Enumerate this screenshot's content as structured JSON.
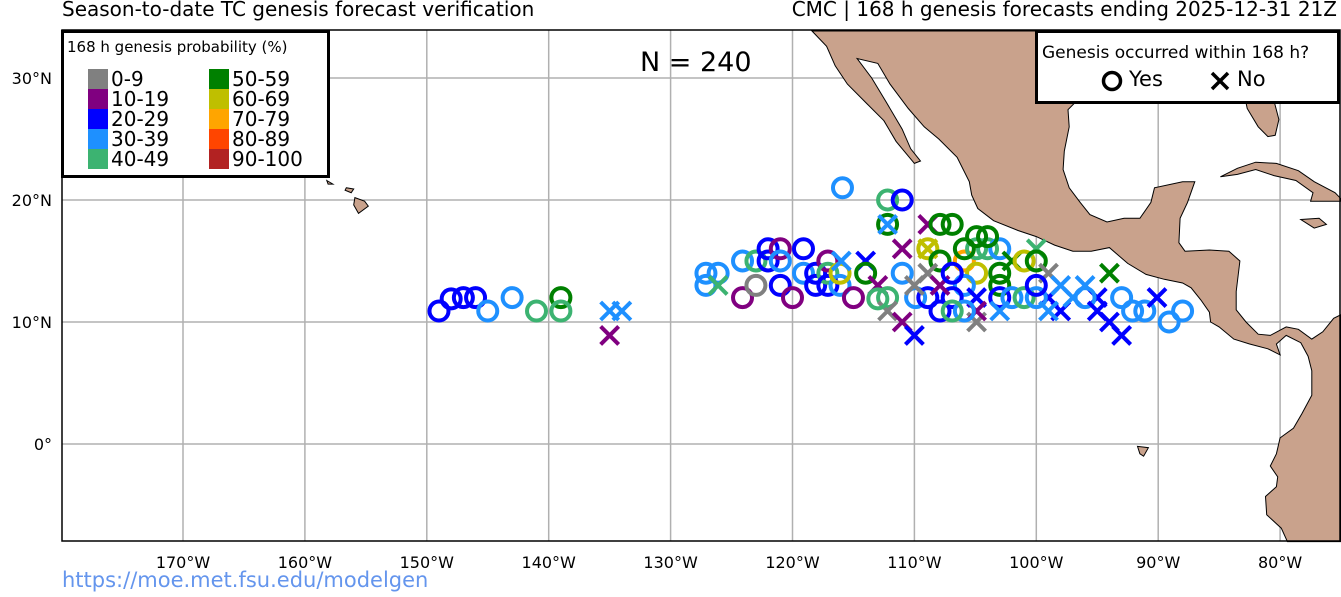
{
  "header": {
    "title_left": "Season-to-date TC genesis forecast verification",
    "title_right": "CMC | 168 h genesis forecasts ending 2025-12-31 21Z"
  },
  "count_label": "N = 240",
  "footer_url": "https://moe.met.fsu.edu/modelgen",
  "prob_legend": {
    "title": "168 h genesis probability (%)",
    "bins": [
      {
        "label": "0-9",
        "color": "#808080"
      },
      {
        "label": "10-19",
        "color": "#800080"
      },
      {
        "label": "20-29",
        "color": "#0000ff"
      },
      {
        "label": "30-39",
        "color": "#1e90ff"
      },
      {
        "label": "40-49",
        "color": "#3cb371"
      },
      {
        "label": "50-59",
        "color": "#008000"
      },
      {
        "label": "60-69",
        "color": "#bfbf00"
      },
      {
        "label": "70-79",
        "color": "#ffa500"
      },
      {
        "label": "80-89",
        "color": "#ff4500"
      },
      {
        "label": "90-100",
        "color": "#b22222"
      }
    ]
  },
  "outcome_legend": {
    "title": "Genesis occurred within 168 h?",
    "yes": "Yes",
    "no": "No"
  },
  "chart_data": {
    "type": "scatter",
    "lon_range": [
      -180,
      -75
    ],
    "lat_range": [
      -8,
      33.85
    ],
    "lon_ticks": [
      {
        "v": -170,
        "l": "170°W"
      },
      {
        "v": -160,
        "l": "160°W"
      },
      {
        "v": -150,
        "l": "150°W"
      },
      {
        "v": -140,
        "l": "140°W"
      },
      {
        "v": -130,
        "l": "130°W"
      },
      {
        "v": -120,
        "l": "120°W"
      },
      {
        "v": -110,
        "l": "110°W"
      },
      {
        "v": -100,
        "l": "100°W"
      },
      {
        "v": -90,
        "l": "90°W"
      },
      {
        "v": -80,
        "l": "80°W"
      }
    ],
    "lat_ticks": [
      {
        "v": 30,
        "l": "30°N"
      },
      {
        "v": 20,
        "l": "20°N"
      },
      {
        "v": 10,
        "l": "10°N"
      },
      {
        "v": 0,
        "l": "0°"
      }
    ],
    "land_color": "#c9a28c",
    "points_note": "[lon, lat, outcome(o=yes,x=no), probability bin index]",
    "points": [
      [
        -149,
        10.9,
        "o",
        2
      ],
      [
        -148,
        11.9,
        "o",
        2
      ],
      [
        -147,
        12,
        "o",
        2
      ],
      [
        -146,
        12,
        "o",
        2
      ],
      [
        -145,
        10.9,
        "o",
        3
      ],
      [
        -143,
        12,
        "o",
        3
      ],
      [
        -141,
        10.9,
        "o",
        4
      ],
      [
        -139,
        12,
        "o",
        5
      ],
      [
        -139,
        10.9,
        "o",
        4
      ],
      [
        -135,
        10.9,
        "x",
        3
      ],
      [
        -134,
        10.9,
        "x",
        3
      ],
      [
        -135,
        8.9,
        "x",
        1
      ],
      [
        -115.9,
        21,
        "o",
        3
      ],
      [
        -127.1,
        14,
        "o",
        3
      ],
      [
        -127.1,
        13,
        "o",
        3
      ],
      [
        -126.1,
        14,
        "o",
        3
      ],
      [
        -126.1,
        13,
        "x",
        4
      ],
      [
        -124.1,
        15,
        "o",
        3
      ],
      [
        -124.1,
        12,
        "o",
        1
      ],
      [
        -123,
        13,
        "o",
        0
      ],
      [
        -123,
        15,
        "o",
        4
      ],
      [
        -122,
        16,
        "o",
        2
      ],
      [
        -122,
        15,
        "o",
        2
      ],
      [
        -121,
        16,
        "o",
        1
      ],
      [
        -121,
        15,
        "o",
        3
      ],
      [
        -121,
        13,
        "o",
        2
      ],
      [
        -120,
        12,
        "o",
        1
      ],
      [
        -119.1,
        16,
        "o",
        2
      ],
      [
        -119.1,
        14,
        "o",
        3
      ],
      [
        -118.1,
        13,
        "o",
        2
      ],
      [
        -118.1,
        14,
        "o",
        2
      ],
      [
        -117.1,
        15,
        "o",
        1
      ],
      [
        -117.1,
        14,
        "o",
        4
      ],
      [
        -117.1,
        13,
        "o",
        2
      ],
      [
        -116.1,
        13,
        "o",
        3
      ],
      [
        -116.1,
        14,
        "o",
        6
      ],
      [
        -115,
        12,
        "o",
        1
      ],
      [
        -116,
        15,
        "x",
        3
      ],
      [
        -114,
        15,
        "x",
        2
      ],
      [
        -114,
        14,
        "o",
        5
      ],
      [
        -113,
        13,
        "x",
        1
      ],
      [
        -112.2,
        20,
        "o",
        4
      ],
      [
        -111,
        20,
        "o",
        2
      ],
      [
        -112.2,
        18,
        "o",
        5
      ],
      [
        -112.2,
        18,
        "x",
        3
      ],
      [
        -111,
        16,
        "x",
        1
      ],
      [
        -111,
        14,
        "o",
        3
      ],
      [
        -112.2,
        12,
        "o",
        4
      ],
      [
        -112.2,
        10.9,
        "x",
        0
      ],
      [
        -111,
        10,
        "x",
        1
      ],
      [
        -110,
        8.9,
        "x",
        2
      ],
      [
        -109.9,
        12,
        "o",
        3
      ],
      [
        -108.9,
        12,
        "o",
        2
      ],
      [
        -108.9,
        18,
        "x",
        1
      ],
      [
        -107.9,
        18,
        "o",
        5
      ],
      [
        -106.9,
        18,
        "o",
        5
      ],
      [
        -108.9,
        16,
        "o",
        6
      ],
      [
        -108.9,
        16,
        "x",
        6
      ],
      [
        -107.9,
        15,
        "o",
        5
      ],
      [
        -105.9,
        15,
        "o",
        7
      ],
      [
        -104.9,
        14,
        "o",
        6
      ],
      [
        -104.9,
        16,
        "o",
        4
      ],
      [
        -104,
        16,
        "o",
        4
      ],
      [
        -103,
        16,
        "o",
        3
      ],
      [
        -105.9,
        13,
        "o",
        3
      ],
      [
        -104.9,
        12,
        "x",
        2
      ],
      [
        -104.9,
        10,
        "x",
        0
      ],
      [
        -104.9,
        10.9,
        "x",
        1
      ],
      [
        -107.9,
        10.9,
        "o",
        2
      ],
      [
        -106.9,
        12,
        "o",
        2
      ],
      [
        -105.9,
        10.9,
        "o",
        3
      ],
      [
        -103,
        14,
        "o",
        5
      ],
      [
        -103,
        13,
        "o",
        5
      ],
      [
        -102,
        15,
        "x",
        5
      ],
      [
        -101,
        15,
        "o",
        6
      ],
      [
        -100,
        16,
        "x",
        4
      ],
      [
        -100,
        15,
        "o",
        5
      ],
      [
        -99,
        14,
        "x",
        0
      ],
      [
        -99,
        12,
        "x",
        2
      ],
      [
        -98,
        13,
        "x",
        3
      ],
      [
        -98,
        10.9,
        "x",
        2
      ],
      [
        -97,
        12,
        "x",
        3
      ],
      [
        -96,
        13,
        "x",
        3
      ],
      [
        -95,
        12,
        "x",
        2
      ],
      [
        -94,
        14,
        "x",
        5
      ],
      [
        -94,
        10,
        "x",
        2
      ],
      [
        -93,
        8.9,
        "x",
        2
      ],
      [
        -93,
        12,
        "o",
        3
      ],
      [
        -92.1,
        10.9,
        "o",
        3
      ],
      [
        -91.1,
        10.9,
        "o",
        3
      ],
      [
        -90.1,
        12,
        "x",
        2
      ],
      [
        -89.1,
        10,
        "o",
        3
      ],
      [
        -88,
        10.9,
        "o",
        3
      ],
      [
        -103,
        12,
        "o",
        2
      ],
      [
        -102,
        12,
        "o",
        3
      ],
      [
        -101,
        12,
        "o",
        4
      ],
      [
        -100,
        12,
        "o",
        3
      ],
      [
        -99,
        10.9,
        "x",
        3
      ],
      [
        -106.9,
        10.9,
        "o",
        4
      ],
      [
        -103,
        10.9,
        "x",
        3
      ],
      [
        -108.9,
        14,
        "x",
        0
      ],
      [
        -107.9,
        13,
        "x",
        1
      ],
      [
        -106.9,
        14,
        "o",
        2
      ],
      [
        -105.9,
        16,
        "o",
        5
      ],
      [
        -104.9,
        17,
        "o",
        5
      ],
      [
        -104,
        17,
        "o",
        5
      ],
      [
        -110,
        13,
        "x",
        0
      ],
      [
        -113,
        11.9,
        "o",
        4
      ],
      [
        -96,
        12,
        "o",
        3
      ],
      [
        -95,
        10.9,
        "x",
        2
      ],
      [
        -100,
        13,
        "o",
        2
      ]
    ]
  }
}
